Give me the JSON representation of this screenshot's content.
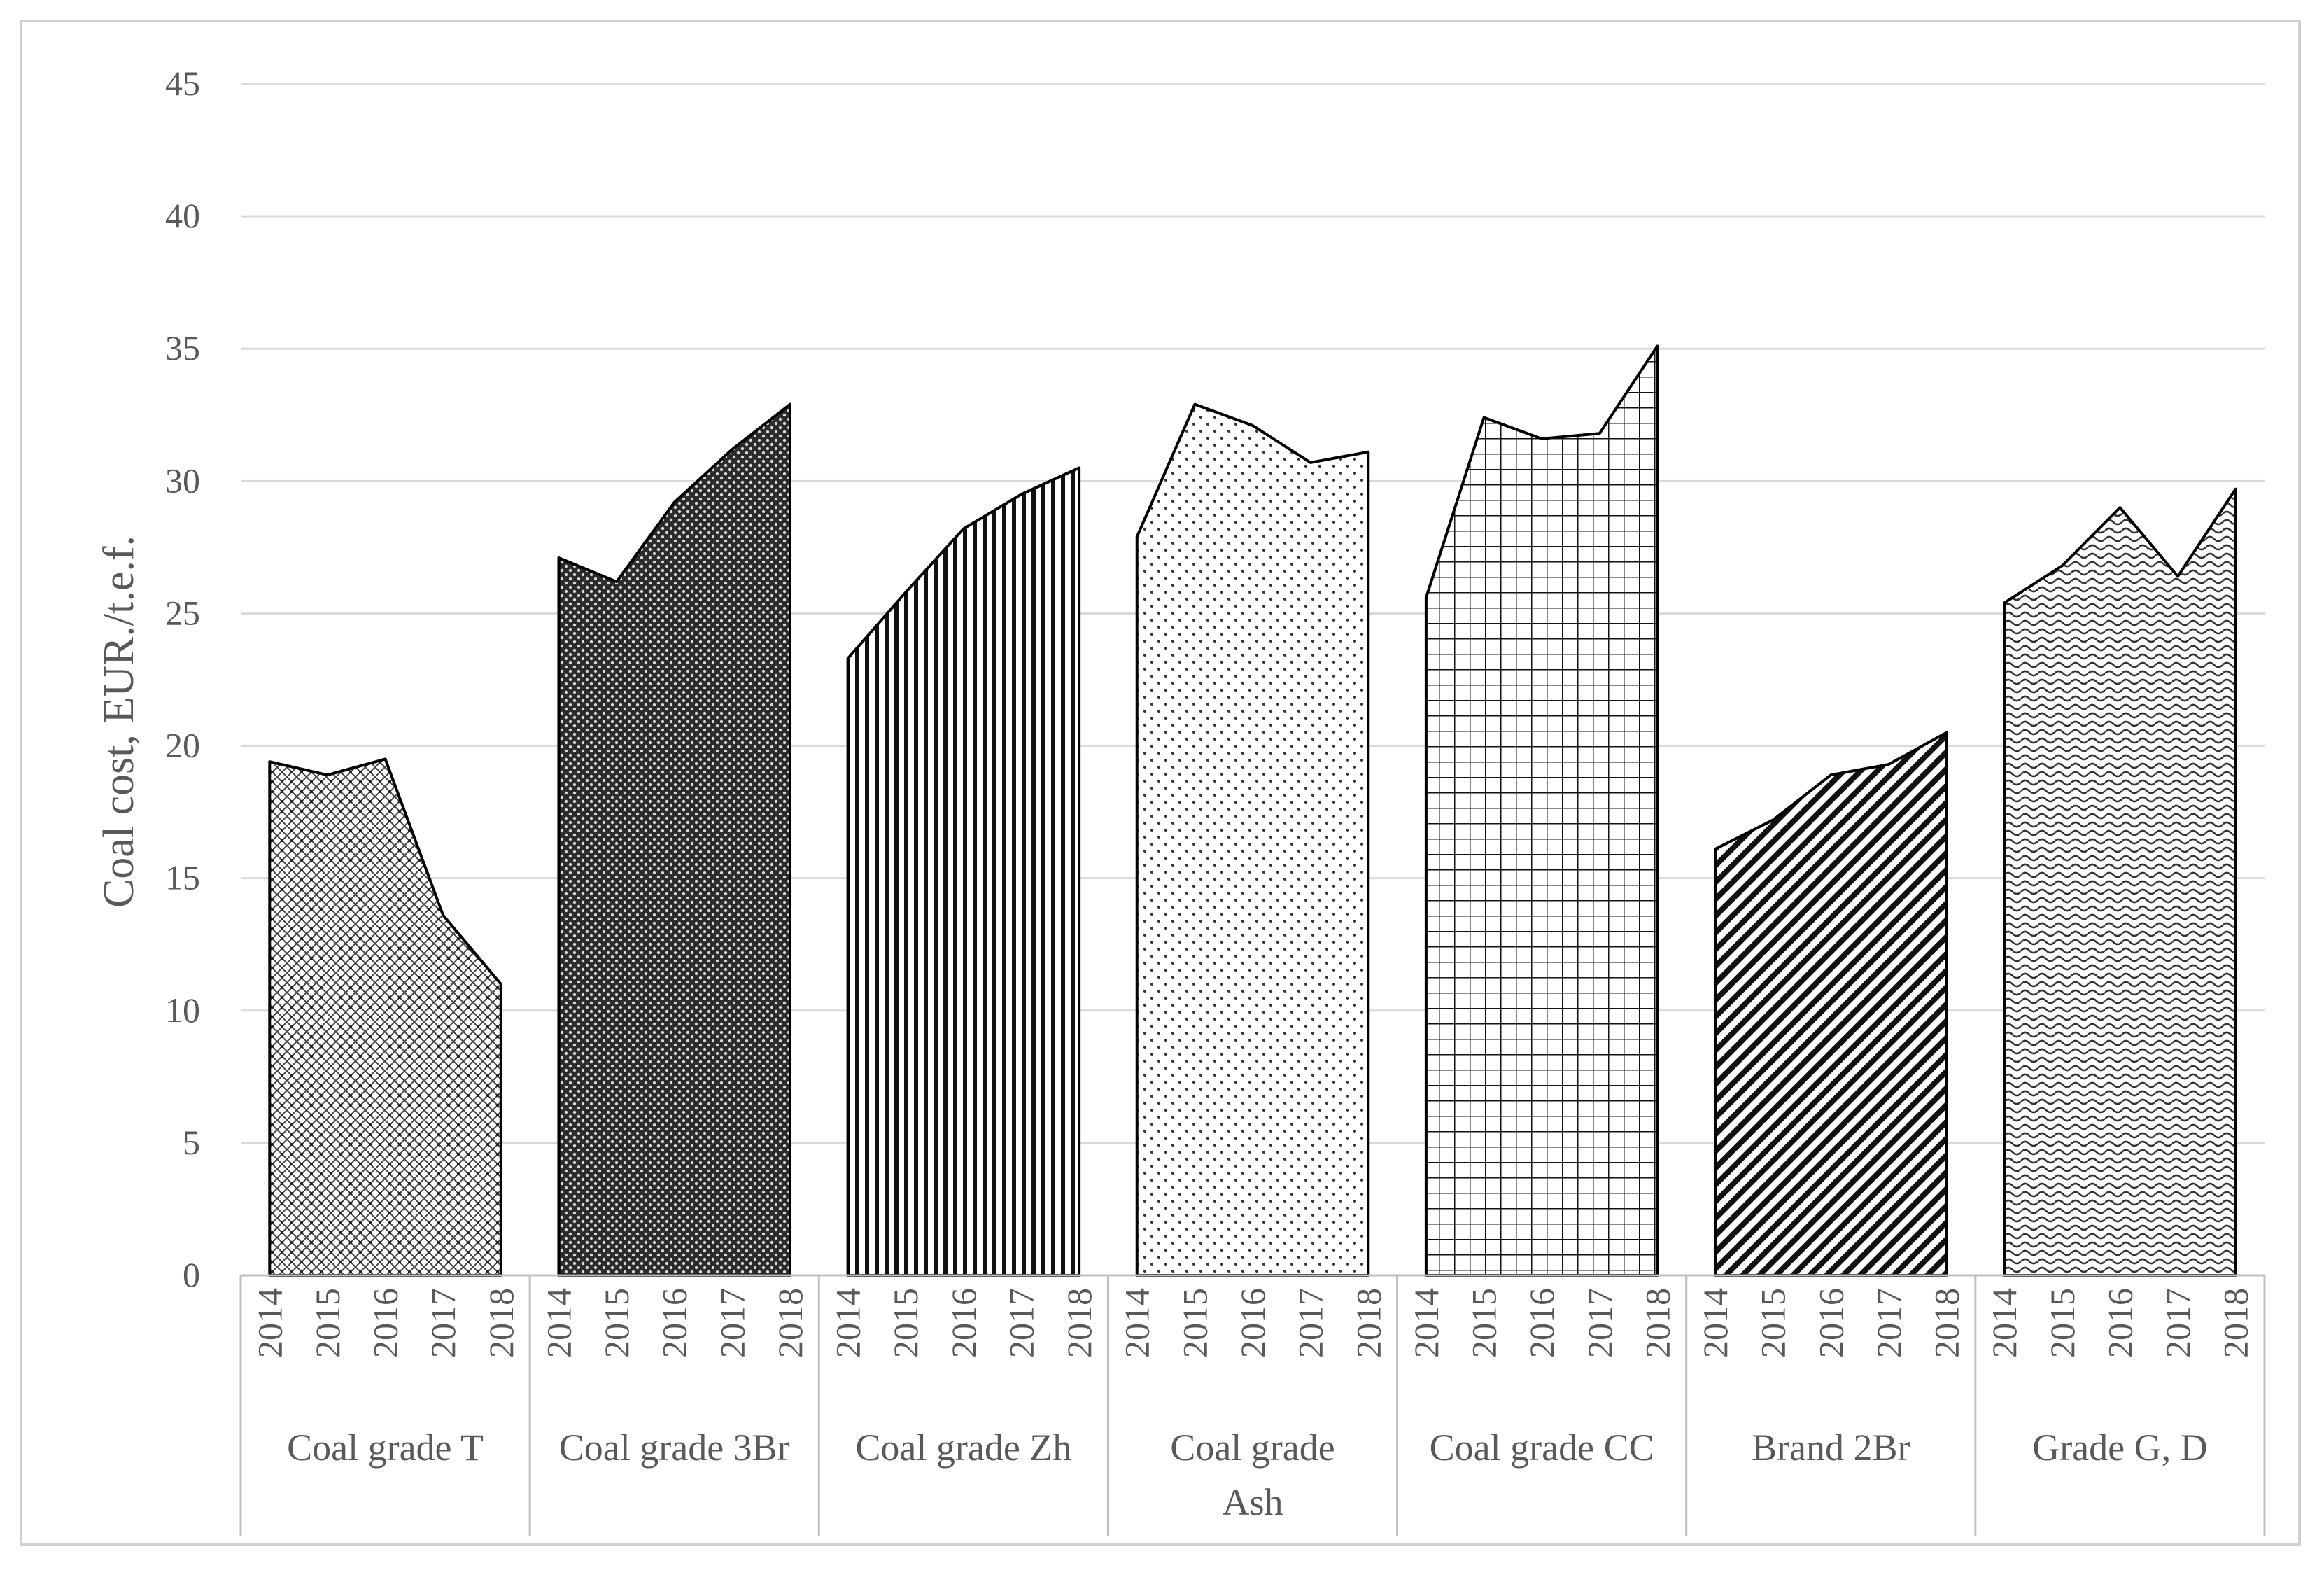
{
  "chart_data": {
    "type": "area",
    "title": "",
    "xlabel": "",
    "ylabel": "Coal cost, EUR./t.e.f.",
    "ylim": [
      0,
      45
    ],
    "yticks": [
      0,
      5,
      10,
      15,
      20,
      25,
      30,
      35,
      40,
      45
    ],
    "grid": true,
    "legend": "none",
    "years": [
      "2014",
      "2015",
      "2016",
      "2017",
      "2018"
    ],
    "groups": [
      {
        "name": "Coal grade T",
        "label_lines": [
          "Coal grade T"
        ],
        "pattern": "crosshatch-fine",
        "values": [
          19.4,
          18.9,
          19.5,
          13.6,
          11.0
        ]
      },
      {
        "name": "Coal grade 3Br",
        "label_lines": [
          "Coal grade 3Br"
        ],
        "pattern": "dark-dots",
        "values": [
          27.1,
          26.2,
          29.2,
          31.2,
          32.9
        ]
      },
      {
        "name": "Coal grade Zh",
        "label_lines": [
          "Coal grade Zh"
        ],
        "pattern": "vertical-lines",
        "values": [
          23.3,
          25.8,
          28.2,
          29.5,
          30.5
        ]
      },
      {
        "name": "Coal grade Ash",
        "label_lines": [
          "Coal grade",
          "Ash"
        ],
        "pattern": "sparse-dots",
        "values": [
          27.9,
          32.9,
          32.1,
          30.7,
          31.1
        ]
      },
      {
        "name": "Coal grade CC",
        "label_lines": [
          "Coal grade CC"
        ],
        "pattern": "grid",
        "values": [
          25.6,
          32.4,
          31.6,
          31.8,
          35.1
        ]
      },
      {
        "name": "Brand 2Br",
        "label_lines": [
          "Brand 2Br"
        ],
        "pattern": "diagonal",
        "values": [
          16.1,
          17.2,
          18.9,
          19.3,
          20.5
        ]
      },
      {
        "name": "Grade G, D",
        "label_lines": [
          "Grade G, D"
        ],
        "pattern": "wave",
        "values": [
          25.4,
          26.8,
          29.0,
          26.4,
          29.7
        ]
      }
    ]
  }
}
